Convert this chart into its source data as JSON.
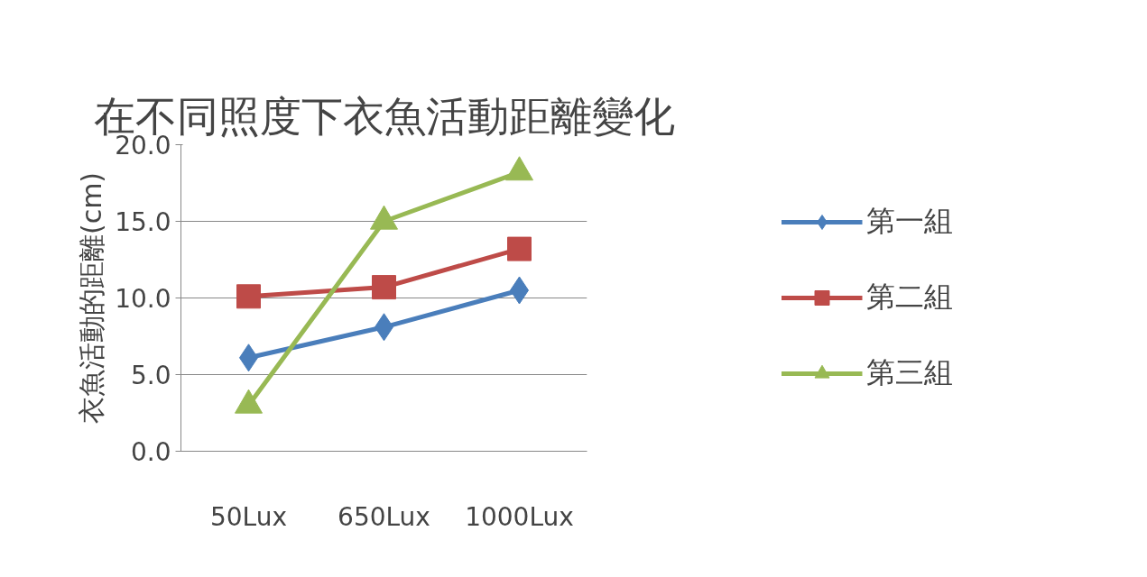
{
  "chart_data": {
    "type": "line",
    "title": "在不同照度下衣魚活動距離變化",
    "ylabel": "衣魚活動的距離(cm)",
    "categories": [
      "50Lux",
      "650Lux",
      "1000Lux"
    ],
    "series": [
      {
        "name": "第一組",
        "color": "#4a7ebb",
        "marker": "diamond",
        "values": [
          6.1,
          8.1,
          10.5
        ]
      },
      {
        "name": "第二組",
        "color": "#be4b48",
        "marker": "square",
        "values": [
          10.1,
          10.7,
          13.2
        ]
      },
      {
        "name": "第三組",
        "color": "#98b954",
        "marker": "triangle",
        "values": [
          3.0,
          15.0,
          18.2
        ]
      }
    ],
    "ylim": [
      0,
      20
    ],
    "yticks": [
      {
        "value": 0,
        "label": "0.0"
      },
      {
        "value": 5,
        "label": "5.0"
      },
      {
        "value": 10,
        "label": "10.0"
      },
      {
        "value": 15,
        "label": "15.0"
      },
      {
        "value": 20,
        "label": "20.0"
      }
    ],
    "grid": "y",
    "legend": "right",
    "line_style": "solid"
  }
}
